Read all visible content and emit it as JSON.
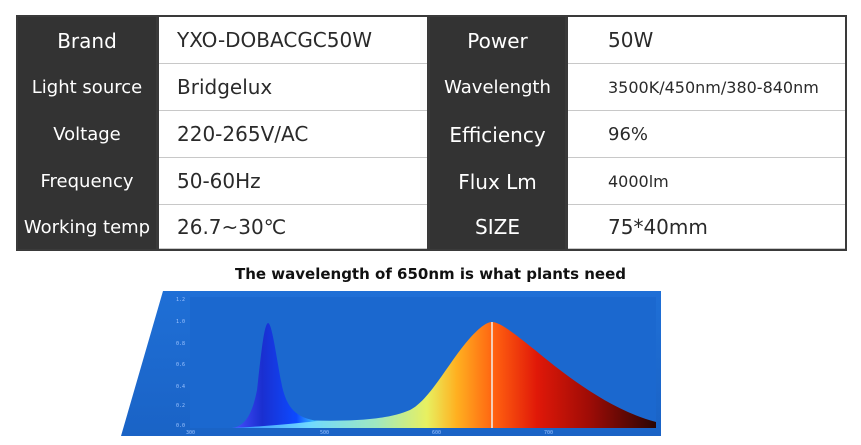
{
  "spec_table": {
    "rows": [
      {
        "label1": "Brand",
        "value1": "YXO-DOBACGC50W",
        "label2": "Power",
        "value2": "50W"
      },
      {
        "label1": "Light source",
        "value1": "Bridgelux",
        "label2": "Wavelength",
        "value2": "3500K/450nm/380-840nm"
      },
      {
        "label1": "Voltage",
        "value1": "220-265V/AC",
        "label2": "Efficiency",
        "value2": "96%"
      },
      {
        "label1": "Frequency",
        "value1": "50-60Hz",
        "label2": "Flux Lm",
        "value2": "4000lm"
      },
      {
        "label1": "Working temp",
        "value1": "26.7~30℃",
        "label2": "SIZE",
        "value2": "75*40mm"
      }
    ]
  },
  "spectrum": {
    "caption": "The wavelength of 650nm is what plants need",
    "y_ticks": [
      "1.2",
      "1.0",
      "0.8",
      "0.6",
      "0.4",
      "0.2",
      "0.0"
    ],
    "x_ticks": [
      "300",
      "500",
      "600",
      "700"
    ],
    "colors": {
      "panel": "#1f6fd6",
      "panel_dark": "#0d4fa8",
      "blue_peak": "#1a2fd0",
      "red_peak": "#d81808"
    }
  }
}
